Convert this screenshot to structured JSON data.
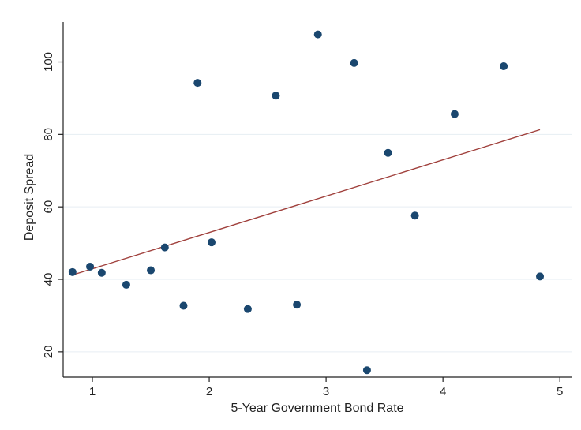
{
  "chart_data": {
    "type": "scatter",
    "xlabel": "5-Year Government Bond Rate",
    "ylabel": "Deposit Spread",
    "xlim": [
      0.75,
      5.1
    ],
    "ylim": [
      13,
      111
    ],
    "xticks": [
      "1",
      "2",
      "3",
      "4",
      "5"
    ],
    "yticks": [
      "20",
      "40",
      "60",
      "80",
      "100"
    ],
    "grid": true,
    "legend": "none",
    "series": [
      {
        "points": [
          {
            "x": 0.83,
            "y": 42
          },
          {
            "x": 0.98,
            "y": 43.5
          },
          {
            "x": 1.08,
            "y": 41.8
          },
          {
            "x": 1.29,
            "y": 38.5
          },
          {
            "x": 1.5,
            "y": 42.5
          },
          {
            "x": 1.62,
            "y": 48.8
          },
          {
            "x": 1.78,
            "y": 32.7
          },
          {
            "x": 1.9,
            "y": 94.2
          },
          {
            "x": 2.02,
            "y": 50.2
          },
          {
            "x": 2.33,
            "y": 31.8
          },
          {
            "x": 2.57,
            "y": 90.7
          },
          {
            "x": 2.75,
            "y": 33.0
          },
          {
            "x": 2.93,
            "y": 107.6
          },
          {
            "x": 3.24,
            "y": 99.7
          },
          {
            "x": 3.35,
            "y": 14.9
          },
          {
            "x": 3.53,
            "y": 74.9
          },
          {
            "x": 3.76,
            "y": 57.6
          },
          {
            "x": 4.1,
            "y": 85.6
          },
          {
            "x": 4.52,
            "y": 98.8
          },
          {
            "x": 4.83,
            "y": 40.8
          }
        ]
      }
    ],
    "fit_line": {
      "type": "linear",
      "from": {
        "x": 0.83,
        "y": 41.2
      },
      "to": {
        "x": 4.83,
        "y": 81.3
      }
    },
    "colors": {
      "points": "#1a476f",
      "fit_line": "#a0403c",
      "grid": "#e6eef3"
    }
  }
}
